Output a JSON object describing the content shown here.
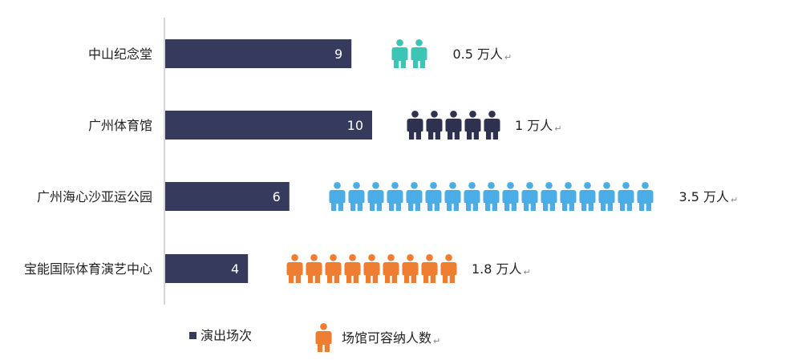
{
  "chart_data": {
    "type": "bar",
    "orientation": "horizontal",
    "categories": [
      "中山纪念堂",
      "广州体育馆",
      "广州海心沙亚运公园",
      "宝能国际体育演艺中心"
    ],
    "series": [
      {
        "name": "演出场次",
        "values": [
          9,
          10,
          6,
          4
        ],
        "color": "#363a5c"
      },
      {
        "name": "场馆可容纳人数",
        "values": [
          0.5,
          1,
          3.5,
          1.8
        ],
        "labels": [
          "0.5 万人",
          "1 万人",
          "3.5 万人",
          "1.8 万人"
        ],
        "colors": [
          "#3cc5b5",
          "#2e3150",
          "#4aade6",
          "#ed7d31"
        ],
        "icon": "person-icon",
        "icon_value": 0.2
      }
    ],
    "xlim": [
      0,
      10
    ],
    "grid": false,
    "legend": "bottom",
    "return_mark": "↵"
  }
}
